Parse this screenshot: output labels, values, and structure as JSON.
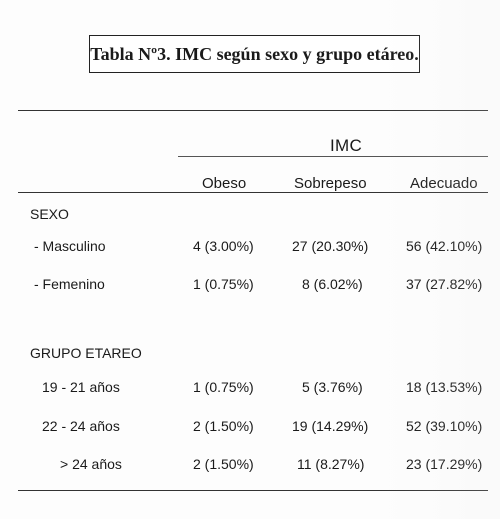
{
  "title": "Tabla Nº3. IMC según sexo y grupo etáreo.",
  "group_header": "IMC",
  "columns": [
    "Obeso",
    "Sobrepeso",
    "Adecuado"
  ],
  "sections": [
    {
      "label": "SEXO",
      "rows": [
        {
          "label": "- Masculino",
          "values": [
            "4 (3.00%)",
            "27 (20.30%)",
            "56 (42.10%)"
          ]
        },
        {
          "label": "- Femenino",
          "values": [
            "1 (0.75%)",
            "8 (6.02%)",
            "37 (27.82%)"
          ]
        }
      ]
    },
    {
      "label": "GRUPO ETAREO",
      "rows": [
        {
          "label": "19 - 21 años",
          "values": [
            "1 (0.75%)",
            "5 (3.76%)",
            "18 (13.53%)"
          ]
        },
        {
          "label": "22 - 24 años",
          "values": [
            "2 (1.50%)",
            "19 (14.29%)",
            "52 (39.10%)"
          ]
        },
        {
          "label": "> 24 años",
          "values": [
            "2 (1.50%)",
            "11 (8.27%)",
            "23 (17.29%)"
          ]
        }
      ]
    }
  ]
}
